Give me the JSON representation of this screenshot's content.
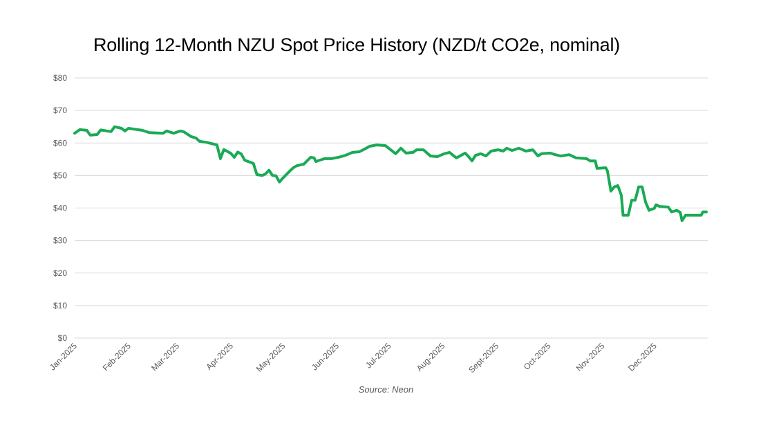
{
  "chart_data": {
    "type": "line",
    "title": "Rolling 12-Month NZU Spot Price History (NZD/t CO2e, nominal)",
    "source": "Source: Neon",
    "xlabel": "",
    "ylabel": "",
    "ylim": [
      0,
      80
    ],
    "xlim": [
      "2025-01-01",
      "2025-12-31"
    ],
    "grid": true,
    "legend": "none",
    "line_color": "#1AAA55",
    "y_ticks": [
      "$0",
      "$10",
      "$20",
      "$30",
      "$40",
      "$50",
      "$60",
      "$70",
      "$80"
    ],
    "x_ticks": [
      "Jan-2025",
      "Feb-2025",
      "Mar-2025",
      "Apr-2025",
      "May-2025",
      "Jun-2025",
      "Jul-2025",
      "Aug-2025",
      "Sept-2025",
      "Oct-2025",
      "Nov-2025",
      "Dec-2025"
    ],
    "series": [
      {
        "x": [
          "2025-01-01",
          "2025-01-04",
          "2025-01-08",
          "2025-01-10",
          "2025-01-14",
          "2025-01-16",
          "2025-01-22",
          "2025-01-24",
          "2025-01-28",
          "2025-01-30",
          "2025-02-01",
          "2025-02-09",
          "2025-02-13",
          "2025-02-21",
          "2025-02-23",
          "2025-02-27",
          "2025-03-03",
          "2025-03-05",
          "2025-03-09",
          "2025-03-12",
          "2025-03-14",
          "2025-03-18",
          "2025-03-24",
          "2025-03-26",
          "2025-03-28",
          "2025-04-01",
          "2025-04-03",
          "2025-04-05",
          "2025-04-07",
          "2025-04-09",
          "2025-04-14",
          "2025-04-16",
          "2025-04-19",
          "2025-04-21",
          "2025-04-23",
          "2025-04-25",
          "2025-04-27",
          "2025-04-29",
          "2025-05-01",
          "2025-05-05",
          "2025-05-07",
          "2025-05-09",
          "2025-05-13",
          "2025-05-17",
          "2025-05-19",
          "2025-05-20",
          "2025-05-25",
          "2025-05-29",
          "2025-06-02",
          "2025-06-06",
          "2025-06-10",
          "2025-06-14",
          "2025-06-17",
          "2025-06-20",
          "2025-06-24",
          "2025-06-29",
          "2025-07-05",
          "2025-07-08",
          "2025-07-11",
          "2025-07-15",
          "2025-07-17",
          "2025-07-21",
          "2025-07-25",
          "2025-07-29",
          "2025-08-02",
          "2025-08-05",
          "2025-08-09",
          "2025-08-14",
          "2025-08-16",
          "2025-08-18",
          "2025-08-20",
          "2025-08-23",
          "2025-08-26",
          "2025-08-29",
          "2025-09-02",
          "2025-09-05",
          "2025-09-07",
          "2025-09-10",
          "2025-09-14",
          "2025-09-18",
          "2025-09-22",
          "2025-09-25",
          "2025-09-27",
          "2025-10-02",
          "2025-10-05",
          "2025-10-08",
          "2025-10-13",
          "2025-10-17",
          "2025-10-23",
          "2025-10-25",
          "2025-10-28",
          "2025-10-29",
          "2025-11-03",
          "2025-11-04",
          "2025-11-06",
          "2025-11-08",
          "2025-11-10",
          "2025-11-12",
          "2025-11-13",
          "2025-11-16",
          "2025-11-18",
          "2025-11-20",
          "2025-11-22",
          "2025-11-24",
          "2025-11-26",
          "2025-11-28",
          "2025-12-01",
          "2025-12-02",
          "2025-12-04",
          "2025-12-09",
          "2025-12-11",
          "2025-12-14",
          "2025-12-16",
          "2025-12-17",
          "2025-12-19",
          "2025-12-28",
          "2025-12-29",
          "2025-12-31"
        ],
        "y": [
          63.0,
          64.1,
          63.9,
          62.4,
          62.6,
          64.0,
          63.5,
          65.0,
          64.5,
          63.7,
          64.5,
          63.9,
          63.2,
          63.0,
          63.7,
          63.0,
          63.7,
          63.4,
          62.0,
          61.5,
          60.5,
          60.2,
          59.4,
          55.2,
          58.0,
          56.8,
          55.6,
          57.2,
          56.6,
          54.7,
          53.7,
          50.3,
          50.0,
          50.5,
          51.6,
          50.0,
          49.9,
          48.0,
          49.2,
          51.4,
          52.4,
          53.0,
          53.5,
          55.6,
          55.4,
          54.3,
          55.2,
          55.2,
          55.6,
          56.2,
          57.1,
          57.3,
          58.1,
          59.0,
          59.4,
          59.2,
          56.7,
          58.4,
          56.9,
          57.1,
          57.9,
          57.9,
          56.0,
          55.8,
          56.7,
          57.1,
          55.4,
          56.9,
          55.8,
          54.5,
          56.2,
          56.7,
          56.0,
          57.5,
          57.9,
          57.5,
          58.4,
          57.7,
          58.4,
          57.5,
          57.9,
          56.0,
          56.7,
          56.9,
          56.4,
          56.0,
          56.4,
          55.4,
          55.2,
          54.5,
          54.5,
          52.2,
          52.4,
          51.4,
          45.2,
          46.5,
          46.9,
          43.9,
          37.8,
          37.8,
          42.4,
          42.4,
          46.5,
          46.5,
          41.8,
          39.3,
          39.9,
          41.0,
          40.5,
          40.3,
          38.8,
          39.3,
          38.6,
          36.1,
          37.8,
          37.8,
          38.8,
          38.8
        ]
      }
    ]
  }
}
